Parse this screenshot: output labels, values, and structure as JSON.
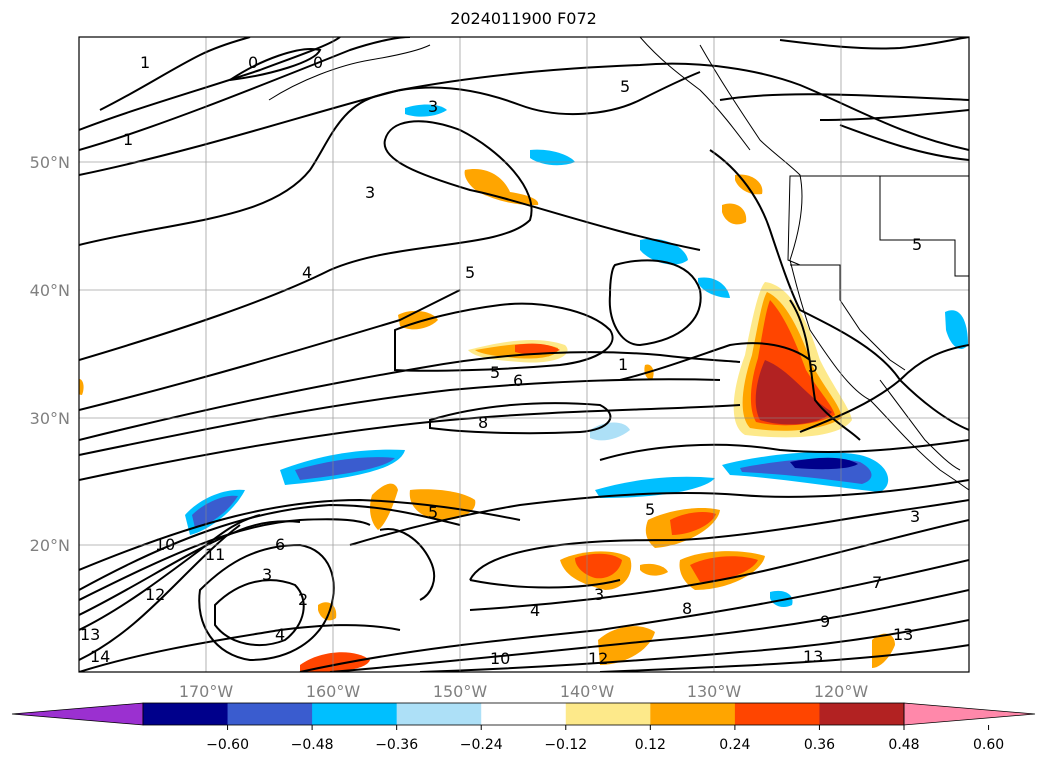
{
  "title": "2024011900 F072",
  "map": {
    "lat_labels": [
      "50°N",
      "40°N",
      "30°N",
      "20°N"
    ],
    "lon_labels": [
      "170°W",
      "160°W",
      "150°W",
      "140°W",
      "130°W",
      "120°W"
    ],
    "label_color": "#808080",
    "contour_labels": [
      "1",
      "0",
      "0",
      "1",
      "3",
      "5",
      "3",
      "4",
      "5",
      "5",
      "6",
      "1",
      "8",
      "5",
      "5",
      "3",
      "5",
      "5",
      "3",
      "6",
      "8",
      "10",
      "12",
      "11",
      "3",
      "2",
      "4",
      "9",
      "4",
      "10",
      "12",
      "13",
      "14",
      "7",
      "13",
      "13"
    ]
  },
  "colorbar": {
    "ticks": [
      "−0.60",
      "−0.48",
      "−0.36",
      "−0.24",
      "−0.12",
      "0.12",
      "0.24",
      "0.36",
      "0.48",
      "0.60"
    ],
    "colors": [
      "#9b30d0",
      "#00008b",
      "#3a5ccf",
      "#00bfff",
      "#ade0f7",
      "#ffffff",
      "#fde98a",
      "#ffa500",
      "#ff4500",
      "#b22222",
      "#ff88aa"
    ]
  }
}
